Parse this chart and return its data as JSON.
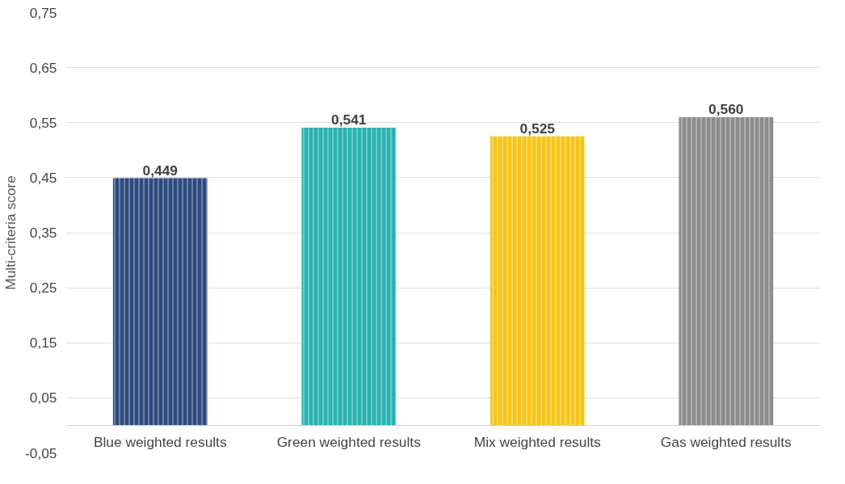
{
  "chart_data": {
    "type": "bar",
    "ylabel": "Multi-criteria score",
    "categories": [
      "Blue weighted results",
      "Green weighted results",
      "Mix weighted results",
      "Gas weighted results"
    ],
    "values": [
      0.449,
      0.541,
      0.525,
      0.56
    ],
    "value_labels": [
      "0,449",
      "0,541",
      "0,525",
      "0,560"
    ],
    "colors": [
      "#2e4a7d",
      "#2ab3b1",
      "#f5c518",
      "#8c8c8c"
    ],
    "ylim": [
      -0.05,
      0.75
    ],
    "yticks": [
      {
        "value": -0.05,
        "label": "-0,05"
      },
      {
        "value": 0.05,
        "label": "0,05"
      },
      {
        "value": 0.15,
        "label": "0,15"
      },
      {
        "value": 0.25,
        "label": "0,25"
      },
      {
        "value": 0.35,
        "label": "0,35"
      },
      {
        "value": 0.45,
        "label": "0,45"
      },
      {
        "value": 0.55,
        "label": "0,55"
      },
      {
        "value": 0.65,
        "label": "0,65"
      },
      {
        "value": 0.75,
        "label": "0,75"
      }
    ],
    "grid": "y"
  }
}
